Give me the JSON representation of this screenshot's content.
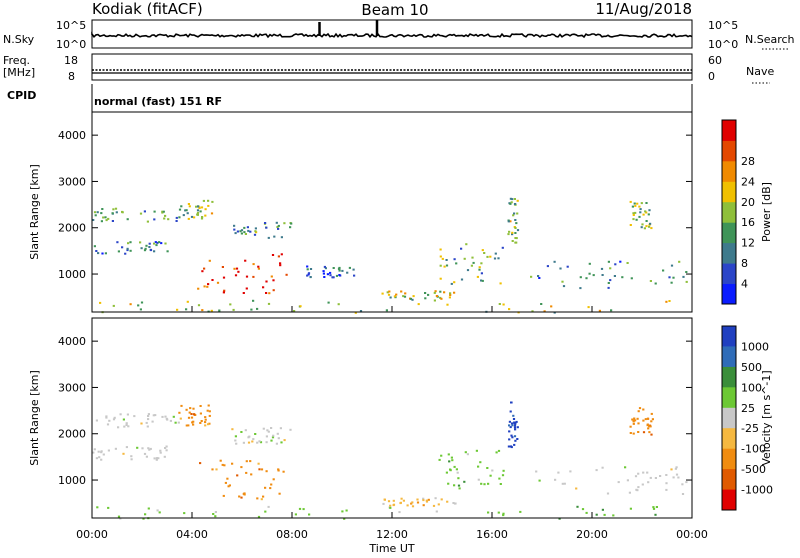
{
  "header": {
    "station": "Kodiak (fitACF)",
    "beam": "Beam 10",
    "date": "11/Aug/2018"
  },
  "sky_panel": {
    "label": "N.Sky",
    "left_ticks": [
      "10^5",
      "10^0"
    ],
    "right_ticks": [
      "10^5",
      "10^0"
    ],
    "right_label": "N.Search"
  },
  "freq_panel": {
    "label_line1": "Freq.",
    "label_line2": "[MHz]",
    "left_ticks": [
      "18",
      "8"
    ],
    "right_ticks": [
      "60",
      "0"
    ],
    "right_label": "Nave"
  },
  "cpid": {
    "label": "CPID",
    "text": "normal (fast) 151 RF"
  },
  "chart_data": [
    {
      "type": "heatmap",
      "quantity": "power",
      "ylabel": "Slant Range [km]",
      "ylim": [
        180,
        4500
      ],
      "yticks": [
        "1000",
        "2000",
        "3000",
        "4000"
      ],
      "colorbar_label": "Power [dB]",
      "colorbar_ticks": [
        "4",
        "8",
        "12",
        "16",
        "20",
        "24",
        "28"
      ],
      "colorbar_colors": [
        "#0a1cff",
        "#2b45c8",
        "#3e7a8c",
        "#3f9458",
        "#8fbf3a",
        "#f0c000",
        "#f08a00",
        "#e44800",
        "#e00000"
      ],
      "echo_regions": [
        {
          "t": [
            0.0,
            3.5
          ],
          "r": [
            2150,
            2450
          ],
          "level": 0.35
        },
        {
          "t": [
            0.0,
            3.0
          ],
          "r": [
            1450,
            1750
          ],
          "level": 0.3
        },
        {
          "t": [
            3.4,
            4.8
          ],
          "r": [
            2200,
            2650
          ],
          "level": 0.45
        },
        {
          "t": [
            4.2,
            7.8
          ],
          "r": [
            600,
            1450
          ],
          "level": 0.9
        },
        {
          "t": [
            5.5,
            8.0
          ],
          "r": [
            1800,
            2150
          ],
          "level": 0.35
        },
        {
          "t": [
            8.5,
            10.5
          ],
          "r": [
            950,
            1200
          ],
          "level": 0.2
        },
        {
          "t": [
            13.8,
            16.5
          ],
          "r": [
            800,
            1700
          ],
          "level": 0.4
        },
        {
          "t": [
            16.6,
            17.0
          ],
          "r": [
            1700,
            2700
          ],
          "level": 0.45
        },
        {
          "t": [
            17.5,
            23.8
          ],
          "r": [
            700,
            1300
          ],
          "level": 0.3
        },
        {
          "t": [
            21.5,
            22.4
          ],
          "r": [
            2000,
            2600
          ],
          "level": 0.45
        },
        {
          "t": [
            11.5,
            14.5
          ],
          "r": [
            450,
            650
          ],
          "level": 0.55
        },
        {
          "t": [
            0.0,
            24.0
          ],
          "r": [
            180,
            450
          ],
          "level": 0.5
        }
      ]
    },
    {
      "type": "heatmap",
      "quantity": "velocity",
      "ylabel": "Slant Range [km]",
      "ylim": [
        180,
        4500
      ],
      "yticks": [
        "1000",
        "2000",
        "3000",
        "4000"
      ],
      "colorbar_label": "Velocity [m s^-1]",
      "colorbar_ticks": [
        "1000",
        "500",
        "100",
        "25",
        "-25",
        "-100",
        "-500",
        "-1000"
      ],
      "colorbar_colors": [
        "#2040c0",
        "#2f6cb8",
        "#3a8e3a",
        "#6cc834",
        "#c8c8c8",
        "#f5b840",
        "#f08c10",
        "#e05a00",
        "#e00000"
      ],
      "echo_regions": [
        {
          "t": [
            0.0,
            3.5
          ],
          "r": [
            2150,
            2450
          ],
          "level": "ground"
        },
        {
          "t": [
            0.0,
            3.0
          ],
          "r": [
            1450,
            1750
          ],
          "level": "ground"
        },
        {
          "t": [
            3.4,
            4.8
          ],
          "r": [
            2200,
            2650
          ],
          "level": "-500"
        },
        {
          "t": [
            4.2,
            7.8
          ],
          "r": [
            600,
            1450
          ],
          "level": "-500"
        },
        {
          "t": [
            5.5,
            8.0
          ],
          "r": [
            1800,
            2150
          ],
          "level": "ground"
        },
        {
          "t": [
            13.8,
            16.5
          ],
          "r": [
            800,
            1700
          ],
          "level": "100"
        },
        {
          "t": [
            16.6,
            17.0
          ],
          "r": [
            1700,
            2700
          ],
          "level": "1000"
        },
        {
          "t": [
            17.5,
            23.8
          ],
          "r": [
            700,
            1300
          ],
          "level": "ground"
        },
        {
          "t": [
            21.5,
            22.4
          ],
          "r": [
            2000,
            2600
          ],
          "level": "-500"
        },
        {
          "t": [
            11.5,
            14.5
          ],
          "r": [
            450,
            650
          ],
          "level": "-100"
        },
        {
          "t": [
            0.0,
            24.0
          ],
          "r": [
            180,
            450
          ],
          "level": "25"
        }
      ]
    }
  ],
  "x_axis": {
    "ticks": [
      "00:00",
      "04:00",
      "08:00",
      "12:00",
      "16:00",
      "20:00",
      "00:00"
    ],
    "label": "Time UT"
  }
}
